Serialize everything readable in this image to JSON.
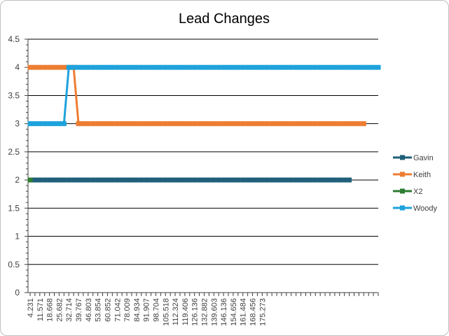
{
  "chart_data": {
    "type": "line",
    "title": "Lead Changes",
    "xlabel": "",
    "ylabel": "",
    "ylim": [
      0,
      4.5
    ],
    "yticks": [
      "0",
      "0.5",
      "1",
      "1.5",
      "2",
      "2.5",
      "3",
      "3.5",
      "4",
      "4.5"
    ],
    "xtick_labels": [
      "4.231",
      "11.571",
      "18.668",
      "25.682",
      "32.714",
      "39.767",
      "46.803",
      "53.854",
      "60.852",
      "71.042",
      "78.009",
      "84.934",
      "91.907",
      "98.704",
      "105.518",
      "112.324",
      "119.406",
      "126.136",
      "132.882",
      "139.603",
      "146.136",
      "154.656",
      "161.484",
      "168.456",
      "175.273"
    ],
    "point_count": 73,
    "grid": true,
    "legend_position": "right",
    "series": [
      {
        "name": "Gavin",
        "color": "#1f5f7a",
        "start": 1,
        "end": 66,
        "changes": [
          [
            1,
            2
          ]
        ]
      },
      {
        "name": "Keith",
        "color": "#ed7d31",
        "start": 0,
        "end": 69,
        "changes": [
          [
            0,
            4
          ],
          [
            10,
            3
          ]
        ]
      },
      {
        "name": "X2",
        "color": "#2e7d32",
        "start": 0,
        "end": 0,
        "changes": [
          [
            0,
            2
          ]
        ]
      },
      {
        "name": "Woody",
        "color": "#1ea2dc",
        "start": 0,
        "end": 72,
        "changes": [
          [
            0,
            3
          ],
          [
            8,
            4
          ]
        ]
      }
    ]
  }
}
